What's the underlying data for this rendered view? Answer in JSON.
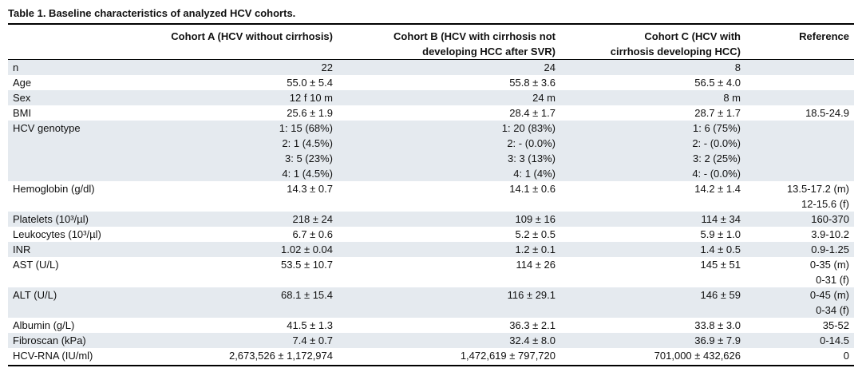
{
  "title": "Table 1. Baseline characteristics of analyzed HCV cohorts.",
  "table": {
    "header": [
      [
        "Cohort A (HCV without cirrhosis)"
      ],
      [
        "Cohort B (HCV with cirrhosis not",
        "developing HCC after SVR)"
      ],
      [
        "Cohort C (HCV with",
        "cirrhosis developing HCC)"
      ],
      [
        "Reference"
      ]
    ],
    "rows": [
      [
        [
          "n"
        ],
        [
          "22"
        ],
        [
          "24"
        ],
        [
          "8"
        ],
        []
      ],
      [
        [
          "Age"
        ],
        [
          "55.0 ± 5.4"
        ],
        [
          "55.8 ± 3.6"
        ],
        [
          "56.5 ± 4.0"
        ],
        []
      ],
      [
        [
          "Sex"
        ],
        [
          "12 f 10 m"
        ],
        [
          "24 m"
        ],
        [
          "8 m"
        ],
        []
      ],
      [
        [
          "BMI"
        ],
        [
          "25.6 ± 1.9"
        ],
        [
          "28.4 ± 1.7"
        ],
        [
          "28.7 ± 1.7"
        ],
        [
          "18.5-24.9"
        ]
      ],
      [
        [
          "HCV genotype"
        ],
        [
          "1: 15 (68%)",
          "2: 1 (4.5%)",
          "3: 5 (23%)",
          "4: 1 (4.5%)"
        ],
        [
          "1: 20 (83%)",
          "2: - (0.0%)",
          "3: 3 (13%)",
          "4: 1 (4%)"
        ],
        [
          "1: 6 (75%)",
          "2: - (0.0%)",
          "3: 2 (25%)",
          "4: - (0.0%)"
        ],
        []
      ],
      [
        [
          "Hemoglobin (g/dl)"
        ],
        [
          "14.3 ± 0.7"
        ],
        [
          "14.1 ± 0.6"
        ],
        [
          "14.2 ± 1.4"
        ],
        [
          "13.5-17.2 (m)",
          "12-15.6 (f)"
        ]
      ],
      [
        [
          "Platelets (10³/µl)"
        ],
        [
          "218 ± 24"
        ],
        [
          "109 ± 16"
        ],
        [
          "114 ± 34"
        ],
        [
          "160-370"
        ]
      ],
      [
        [
          "Leukocytes (10³/µl)"
        ],
        [
          "6.7 ± 0.6"
        ],
        [
          "5.2 ± 0.5"
        ],
        [
          "5.9 ± 1.0"
        ],
        [
          "3.9-10.2"
        ]
      ],
      [
        [
          "INR"
        ],
        [
          "1.02 ± 0.04"
        ],
        [
          "1.2 ± 0.1"
        ],
        [
          "1.4 ± 0.5"
        ],
        [
          "0.9-1.25"
        ]
      ],
      [
        [
          "AST (U/L)"
        ],
        [
          "53.5 ± 10.7"
        ],
        [
          "114 ± 26"
        ],
        [
          "145 ± 51"
        ],
        [
          "0-35 (m)",
          "0-31 (f)"
        ]
      ],
      [
        [
          "ALT (U/L)"
        ],
        [
          "68.1 ± 15.4"
        ],
        [
          "116 ± 29.1"
        ],
        [
          "146 ± 59"
        ],
        [
          "0-45 (m)",
          "0-34 (f)"
        ]
      ],
      [
        [
          "Albumin (g/L)"
        ],
        [
          "41.5 ± 1.3"
        ],
        [
          "36.3 ± 2.1"
        ],
        [
          "33.8 ± 3.0"
        ],
        [
          "35-52"
        ]
      ],
      [
        [
          "Fibroscan (kPa)"
        ],
        [
          "7.4 ± 0.7"
        ],
        [
          "32.4 ± 8.0"
        ],
        [
          "36.9 ± 7.9"
        ],
        [
          "0-14.5"
        ]
      ],
      [
        [
          "HCV-RNA (IU/ml)"
        ],
        [
          "2,673,526 ± 1,172,974"
        ],
        [
          "1,472,619 ± 797,720"
        ],
        [
          "701,000 ± 432,626"
        ],
        [
          "0"
        ]
      ]
    ]
  }
}
